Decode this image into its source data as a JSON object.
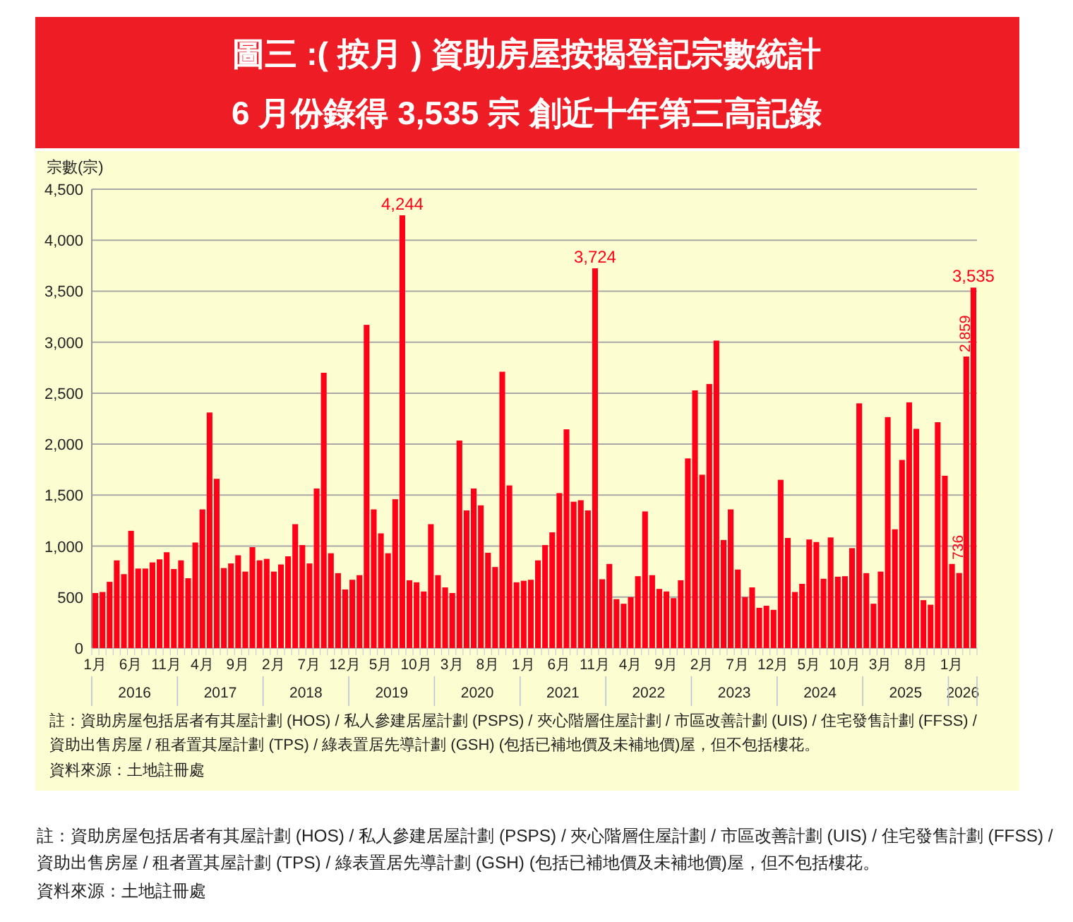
{
  "chart_data": {
    "type": "bar",
    "title": "圖三 :( 按月 ) 資助房屋按揭登記宗數統計",
    "subtitle": "6 月份錄得 3,535 宗 創近十年第三高記錄",
    "ylabel": "宗數(宗)",
    "categories": [
      "1月",
      null,
      null,
      null,
      null,
      "6月",
      null,
      null,
      null,
      null,
      "11月",
      null,
      null,
      null,
      null,
      "4月",
      null,
      null,
      null,
      null,
      "9月",
      null,
      null,
      null,
      null,
      "2月",
      null,
      null,
      null,
      null,
      "7月",
      null,
      null,
      null,
      null,
      "12月",
      null,
      null,
      null,
      null,
      "5月",
      null,
      null,
      null,
      null,
      "10月",
      null,
      null,
      null,
      null,
      "3月",
      null,
      null,
      null,
      null,
      "8月",
      null,
      null,
      null,
      null,
      "1月",
      null,
      null,
      null,
      null,
      "6月",
      null,
      null,
      null,
      null,
      "11月",
      null,
      null,
      null,
      null,
      "4月",
      null,
      null,
      null,
      null,
      "9月",
      null,
      null,
      null,
      null,
      "2月",
      null,
      null,
      null,
      null,
      "7月",
      null,
      null,
      null,
      null,
      "12月",
      null,
      null,
      null,
      null,
      "5月",
      null,
      null,
      null,
      null,
      "10月",
      null,
      null,
      null,
      null,
      "3月",
      null,
      null,
      null,
      null,
      "8月",
      null,
      null,
      null,
      null,
      "1月",
      null,
      null,
      null
    ],
    "values": [
      540,
      550,
      650,
      860,
      725,
      1150,
      780,
      780,
      840,
      870,
      940,
      775,
      860,
      685,
      1035,
      1360,
      2310,
      1660,
      785,
      830,
      910,
      750,
      990,
      860,
      875,
      750,
      820,
      900,
      1215,
      1010,
      830,
      1565,
      2700,
      930,
      735,
      575,
      670,
      715,
      3170,
      1360,
      1125,
      930,
      1460,
      4244,
      665,
      645,
      555,
      1215,
      715,
      595,
      540,
      2035,
      1350,
      1565,
      1400,
      935,
      795,
      2710,
      1595,
      645,
      660,
      670,
      860,
      1010,
      1135,
      1520,
      2145,
      1435,
      1450,
      1350,
      3724,
      675,
      825,
      480,
      435,
      500,
      705,
      1340,
      715,
      580,
      555,
      490,
      665,
      1860,
      2527,
      1700,
      2590,
      3015,
      1060,
      1360,
      770,
      500,
      595,
      395,
      415,
      375,
      1650,
      1080,
      550,
      630,
      1065,
      1040,
      680,
      1085,
      700,
      705,
      980,
      2400,
      735,
      435,
      750,
      2265,
      1165,
      1845,
      2410,
      2150,
      470,
      425,
      2215,
      1690,
      825,
      736,
      2859,
      3535
    ],
    "value_labels": [
      null,
      null,
      null,
      null,
      null,
      null,
      null,
      null,
      null,
      null,
      null,
      null,
      null,
      null,
      null,
      null,
      null,
      null,
      null,
      null,
      null,
      null,
      null,
      null,
      null,
      null,
      null,
      null,
      null,
      null,
      null,
      null,
      null,
      null,
      null,
      null,
      null,
      null,
      null,
      null,
      null,
      null,
      null,
      "4,244",
      null,
      null,
      null,
      null,
      null,
      null,
      null,
      null,
      null,
      null,
      null,
      null,
      null,
      null,
      null,
      null,
      null,
      null,
      null,
      null,
      null,
      null,
      null,
      null,
      null,
      null,
      "3,724",
      null,
      null,
      null,
      null,
      null,
      null,
      null,
      null,
      null,
      null,
      null,
      null,
      null,
      null,
      null,
      null,
      null,
      null,
      null,
      null,
      null,
      null,
      null,
      null,
      null,
      null,
      null,
      null,
      null,
      null,
      null,
      null,
      null,
      null,
      null,
      null,
      null,
      null,
      null,
      null,
      null,
      null,
      null,
      null,
      null,
      null,
      null,
      null,
      null,
      null,
      "736",
      "2,859",
      "3,535"
    ],
    "color": "#ff0018",
    "ylim": [
      0,
      4500
    ],
    "yticks": [
      {
        "value": 0,
        "label": "0"
      },
      {
        "value": 500,
        "label": "500"
      },
      {
        "value": 1000,
        "label": "1,000"
      },
      {
        "value": 1500,
        "label": "1,500"
      },
      {
        "value": 2000,
        "label": "2,000"
      },
      {
        "value": 2500,
        "label": "2,500"
      },
      {
        "value": 3000,
        "label": "3,000"
      },
      {
        "value": 3500,
        "label": "3,500"
      },
      {
        "value": 4000,
        "label": "4,000"
      },
      {
        "value": 4500,
        "label": "4,500"
      }
    ],
    "grid": "y",
    "annotations": [
      "2016",
      "2017",
      "2018",
      "2019",
      "2020",
      "2021",
      "2022",
      "2023",
      "2024",
      "2025",
      "2026",
      "註：資助房屋包括居者有其屋計劃 (HOS) / 私人參建居屋計劃 (PSPS) / 夾心階層住屋計劃 / 市區改善計劃 (UIS) / 住宅發售計劃 (FFSS) / 資助出售房屋 / 租者置其屋計劃 (TPS) / 綠表置居先導計劃 (GSH) (包括已補地價及未補地價)屋，但不包括樓花。",
      "資料來源：土地註冊處",
      "註：資助房屋包括居者有其屋計劃 (HOS) / 私人參建居屋計劃 (PSPS) / 夾心階層住屋計劃 / 市區改善計劃 (UIS) / 住宅發售計劃 (FFSS) / 資助出售房屋 / 租者置其屋計劃 (TPS) / 綠表置居先導計劃 (GSH) (包括已補地價及未補地價)屋，但不包括樓花。",
      "資料來源：土地註冊處"
    ]
  }
}
